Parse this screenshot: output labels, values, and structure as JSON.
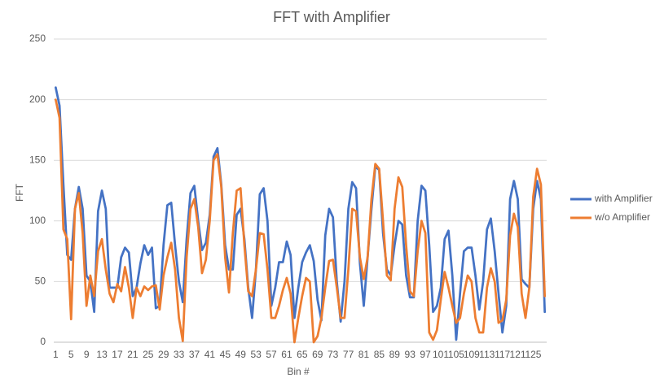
{
  "chart_data": {
    "type": "line",
    "title": "FFT with Amplifier",
    "x_label": "Bin #",
    "y_label": "FFT",
    "categories": [
      1,
      null,
      null,
      null,
      5,
      null,
      null,
      null,
      9,
      null,
      null,
      null,
      13,
      null,
      null,
      null,
      17,
      null,
      null,
      null,
      21,
      null,
      null,
      null,
      25,
      null,
      null,
      null,
      29,
      null,
      null,
      null,
      33,
      null,
      null,
      null,
      37,
      null,
      null,
      null,
      41,
      null,
      null,
      null,
      45,
      null,
      null,
      null,
      49,
      null,
      null,
      null,
      53,
      null,
      null,
      null,
      57,
      null,
      null,
      null,
      61,
      null,
      null,
      null,
      65,
      null,
      null,
      null,
      69,
      null,
      null,
      null,
      73,
      null,
      null,
      null,
      77,
      null,
      null,
      null,
      81,
      null,
      null,
      null,
      85,
      null,
      null,
      null,
      89,
      null,
      null,
      null,
      93,
      null,
      null,
      null,
      97,
      null,
      null,
      null,
      101,
      null,
      null,
      null,
      105,
      null,
      null,
      null,
      109,
      null,
      null,
      null,
      113,
      null,
      null,
      null,
      117,
      null,
      null,
      null,
      121,
      null,
      null,
      null,
      125,
      null,
      null,
      null
    ],
    "series": [
      {
        "name": "with Amplifier",
        "color": "#4472c4",
        "values": [
          210,
          195,
          130,
          72,
          68,
          110,
          128,
          110,
          55,
          50,
          25,
          108,
          125,
          110,
          45,
          45,
          45,
          70,
          78,
          74,
          38,
          45,
          65,
          80,
          72,
          78,
          28,
          30,
          80,
          113,
          115,
          80,
          50,
          33,
          85,
          123,
          129,
          100,
          76,
          82,
          105,
          153,
          160,
          130,
          80,
          60,
          60,
          105,
          110,
          85,
          45,
          20,
          60,
          122,
          127,
          100,
          30,
          45,
          66,
          66,
          83,
          72,
          20,
          45,
          66,
          74,
          80,
          67,
          35,
          18,
          88,
          110,
          103,
          50,
          17,
          50,
          110,
          132,
          127,
          65,
          30,
          70,
          110,
          145,
          142,
          90,
          60,
          55,
          80,
          100,
          97,
          55,
          37,
          37,
          100,
          129,
          125,
          80,
          25,
          30,
          45,
          85,
          92,
          55,
          2,
          40,
          75,
          78,
          78,
          55,
          27,
          50,
          93,
          102,
          75,
          40,
          8,
          30,
          118,
          133,
          118,
          52,
          48,
          45,
          110,
          133,
          118,
          25
        ]
      },
      {
        "name": "w/o Amplifier",
        "color": "#ed7d31",
        "values": [
          200,
          185,
          93,
          85,
          19,
          110,
          123,
          90,
          30,
          55,
          38,
          75,
          85,
          60,
          40,
          33,
          48,
          42,
          62,
          45,
          20,
          45,
          38,
          46,
          43,
          46,
          47,
          27,
          55,
          70,
          82,
          60,
          20,
          1,
          70,
          110,
          118,
          95,
          57,
          68,
          100,
          150,
          155,
          128,
          70,
          41,
          90,
          125,
          127,
          80,
          42,
          38,
          60,
          90,
          89,
          60,
          20,
          20,
          30,
          43,
          53,
          40,
          0,
          20,
          38,
          53,
          50,
          0,
          5,
          20,
          45,
          67,
          68,
          45,
          20,
          20,
          60,
          110,
          108,
          70,
          52,
          70,
          118,
          147,
          143,
          100,
          55,
          51,
          110,
          136,
          128,
          80,
          42,
          38,
          75,
          100,
          90,
          8,
          2,
          10,
          35,
          58,
          45,
          30,
          16,
          20,
          40,
          55,
          50,
          20,
          8,
          8,
          45,
          61,
          50,
          16,
          18,
          35,
          88,
          106,
          95,
          40,
          20,
          45,
          120,
          143,
          130,
          38
        ]
      }
    ],
    "ylim": [
      0,
      250
    ],
    "yticks": [
      0,
      50,
      100,
      150,
      200,
      250
    ],
    "grid": true,
    "legend": "right"
  }
}
